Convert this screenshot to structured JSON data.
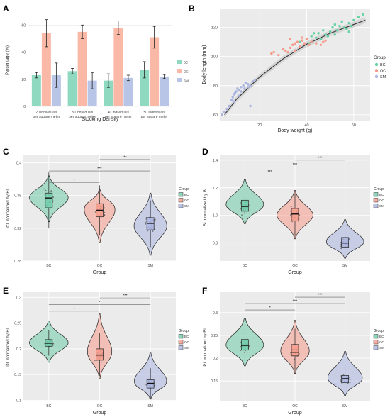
{
  "panels": {
    "A": {
      "letter": "A"
    },
    "B": {
      "letter": "B"
    },
    "C": {
      "letter": "C"
    },
    "D": {
      "letter": "D"
    },
    "E": {
      "letter": "E"
    },
    "F": {
      "letter": "F"
    }
  },
  "chart_data": [
    {
      "id": "A",
      "type": "bar",
      "title": "",
      "xlabel": "Stocking Density",
      "ylabel": "Percentage (%)",
      "ylim": [
        0,
        68
      ],
      "yticks": [
        0,
        20,
        40,
        60
      ],
      "grid": true,
      "legend_position": "right",
      "categories": [
        "20 individuals\nper square meter",
        "30 individuals\nper square meter",
        "40 individuals\nper square meter",
        "50 individuals\nper square meter"
      ],
      "series": [
        {
          "name": "BC",
          "color": "#8fd9c0",
          "values": [
            23,
            26,
            19,
            27
          ],
          "errors": [
            2,
            2,
            5,
            6
          ]
        },
        {
          "name": "OC",
          "color": "#f9b9a6",
          "values": [
            54,
            55,
            58,
            51
          ],
          "errors": [
            10,
            5,
            5,
            8
          ]
        },
        {
          "name": "SM",
          "color": "#b9c5e6",
          "values": [
            23,
            19,
            21,
            22
          ],
          "errors": [
            9,
            6,
            2,
            1.5
          ]
        }
      ]
    },
    {
      "id": "B",
      "type": "scatter",
      "title": "",
      "xlabel": "Body weight (g)",
      "ylabel": "Body length (mm)",
      "xlim": [
        3,
        67
      ],
      "ylim": [
        56,
        133
      ],
      "xticks": [
        20,
        40,
        60
      ],
      "yticks": [
        60,
        80,
        100,
        120
      ],
      "grid": true,
      "legend_title": "Group",
      "legend_position": "right",
      "fit_curve": {
        "x": [
          5,
          10,
          20,
          30,
          40,
          50,
          60,
          65
        ],
        "y": [
          60,
          70.5,
          86,
          98.5,
          108.5,
          116,
          122,
          125
        ]
      },
      "series": [
        {
          "name": "BC",
          "color": "#66d2a4",
          "points": [
            [
              37,
              110
            ],
            [
              40,
              112
            ],
            [
              42,
              114
            ],
            [
              44,
              113
            ],
            [
              45,
              116
            ],
            [
              46,
              112
            ],
            [
              47,
              118
            ],
            [
              48,
              115
            ],
            [
              50,
              117
            ],
            [
              51,
              120
            ],
            [
              52,
              122
            ],
            [
              53,
              118
            ],
            [
              54,
              121
            ],
            [
              55,
              124
            ],
            [
              56,
              120
            ],
            [
              57,
              119
            ],
            [
              58,
              123
            ],
            [
              59,
              121
            ],
            [
              60,
              125
            ],
            [
              62,
              127
            ],
            [
              64,
              129
            ],
            [
              58,
              117
            ],
            [
              52,
              115
            ],
            [
              49,
              114
            ],
            [
              43,
              116
            ],
            [
              41,
              109
            ]
          ]
        },
        {
          "name": "OC",
          "color": "#f59a8a",
          "points": [
            [
              25,
              102
            ],
            [
              28,
              101
            ],
            [
              31,
              104
            ],
            [
              32,
              103
            ],
            [
              33,
              106
            ],
            [
              34,
              108
            ],
            [
              35,
              109
            ],
            [
              36,
              110
            ],
            [
              37,
              107
            ],
            [
              38,
              111
            ],
            [
              39,
              109
            ],
            [
              40,
              112
            ],
            [
              41,
              108
            ],
            [
              42,
              110
            ],
            [
              44,
              109
            ],
            [
              46,
              108
            ],
            [
              47,
              110
            ],
            [
              48,
              111
            ],
            [
              35,
              104
            ],
            [
              30,
              105
            ],
            [
              33,
              112
            ],
            [
              38,
              113
            ],
            [
              26,
              103
            ]
          ]
        },
        {
          "name": "SM",
          "color": "#a9b4e0",
          "points": [
            [
              4,
              60
            ],
            [
              5,
              62
            ],
            [
              6,
              64
            ],
            [
              7,
              66
            ],
            [
              8,
              70
            ],
            [
              8.5,
              72
            ],
            [
              9,
              74
            ],
            [
              9.5,
              75
            ],
            [
              10,
              76
            ],
            [
              10.5,
              78
            ],
            [
              11,
              77
            ],
            [
              12,
              79
            ],
            [
              13,
              80
            ],
            [
              13.5,
              78
            ],
            [
              14,
              82
            ],
            [
              15,
              81
            ],
            [
              16,
              80
            ],
            [
              17,
              83
            ],
            [
              18,
              84
            ],
            [
              11,
              73
            ],
            [
              12,
              76
            ],
            [
              15,
              79
            ],
            [
              16,
              66
            ],
            [
              9,
              69
            ]
          ]
        }
      ]
    },
    {
      "id": "C",
      "type": "violin",
      "xlabel": "Group",
      "ylabel": "CL  normalized by BL",
      "ylim": [
        0.28,
        0.41
      ],
      "yticks": [
        0.28,
        0.32,
        0.36,
        0.4
      ],
      "legend_title": "Group",
      "legend_position": "right",
      "groups": [
        {
          "name": "BC",
          "color": "#6dcca8",
          "min": 0.328,
          "q1": 0.345,
          "median": 0.357,
          "q3": 0.363,
          "max": 0.384,
          "mode": 0.358,
          "width": 0.85
        },
        {
          "name": "OC",
          "color": "#f59a8a",
          "min": 0.303,
          "q1": 0.334,
          "median": 0.342,
          "q3": 0.35,
          "max": 0.367,
          "mode": 0.347,
          "width": 0.72
        },
        {
          "name": "SM",
          "color": "#a9b4e0",
          "min": 0.287,
          "q1": 0.318,
          "median": 0.326,
          "q3": 0.333,
          "max": 0.363,
          "mode": 0.322,
          "width": 0.72
        }
      ],
      "significance": [
        {
          "from": "BC",
          "to": "OC",
          "label": "*",
          "y": 0.376
        },
        {
          "from": "BC",
          "to": "SM",
          "label": "***",
          "y": 0.39
        },
        {
          "from": "OC",
          "to": "SM",
          "label": "**",
          "y": 0.404
        }
      ]
    },
    {
      "id": "D",
      "type": "violin",
      "xlabel": "Group",
      "ylabel": "LSL  normalized by BL",
      "ylim": [
        0.67,
        1.44
      ],
      "yticks": [
        0.8,
        1.0,
        1.2,
        1.4
      ],
      "legend_title": "Group",
      "legend_position": "right",
      "groups": [
        {
          "name": "BC",
          "color": "#6dcca8",
          "min": 0.94,
          "q1": 1.03,
          "median": 1.065,
          "q3": 1.11,
          "max": 1.26,
          "mode": 1.07,
          "width": 0.85
        },
        {
          "name": "OC",
          "color": "#f59a8a",
          "min": 0.83,
          "q1": 0.96,
          "median": 1.01,
          "q3": 1.05,
          "max": 1.18,
          "mode": 1.0,
          "width": 0.8
        },
        {
          "name": "SM",
          "color": "#a9b4e0",
          "min": 0.69,
          "q1": 0.77,
          "median": 0.8,
          "q3": 0.84,
          "max": 0.97,
          "mode": 0.8,
          "width": 0.85
        }
      ],
      "significance": [
        {
          "from": "BC",
          "to": "OC",
          "label": "***",
          "y": 1.3
        },
        {
          "from": "BC",
          "to": "SM",
          "label": "***",
          "y": 1.35
        },
        {
          "from": "OC",
          "to": "SM",
          "label": "***",
          "y": 1.4
        }
      ]
    },
    {
      "id": "E",
      "type": "violin",
      "xlabel": "Group",
      "ylabel": "DL normalized by BL",
      "ylim": [
        0.098,
        0.31
      ],
      "yticks": [
        0.1,
        0.15,
        0.2,
        0.25,
        0.3
      ],
      "legend_title": "Group",
      "legend_position": "right",
      "groups": [
        {
          "name": "BC",
          "color": "#6dcca8",
          "min": 0.174,
          "q1": 0.205,
          "median": 0.211,
          "q3": 0.218,
          "max": 0.254,
          "mode": 0.211,
          "width": 0.85
        },
        {
          "name": "OC",
          "color": "#f59a8a",
          "min": 0.142,
          "q1": 0.178,
          "median": 0.188,
          "q3": 0.2,
          "max": 0.268,
          "mode": 0.19,
          "width": 0.55
        },
        {
          "name": "SM",
          "color": "#a9b4e0",
          "min": 0.103,
          "q1": 0.124,
          "median": 0.133,
          "q3": 0.14,
          "max": 0.192,
          "mode": 0.132,
          "width": 0.75
        }
      ],
      "significance": [
        {
          "from": "BC",
          "to": "OC",
          "label": "*",
          "y": 0.273
        },
        {
          "from": "BC",
          "to": "SM",
          "label": "*",
          "y": 0.286
        },
        {
          "from": "OC",
          "to": "SM",
          "label": "***",
          "y": 0.299
        }
      ]
    },
    {
      "id": "F",
      "type": "violin",
      "xlabel": "Group",
      "ylabel": "PL normalized by BL",
      "ylim": [
        0.105,
        0.345
      ],
      "yticks": [
        0.15,
        0.2,
        0.25,
        0.3
      ],
      "legend_title": "Group",
      "legend_position": "right",
      "groups": [
        {
          "name": "BC",
          "color": "#6dcca8",
          "min": 0.183,
          "q1": 0.218,
          "median": 0.228,
          "q3": 0.241,
          "max": 0.288,
          "mode": 0.226,
          "width": 0.85
        },
        {
          "name": "OC",
          "color": "#f59a8a",
          "min": 0.166,
          "q1": 0.205,
          "median": 0.213,
          "q3": 0.23,
          "max": 0.283,
          "mode": 0.212,
          "width": 0.65
        },
        {
          "name": "SM",
          "color": "#a9b4e0",
          "min": 0.118,
          "q1": 0.146,
          "median": 0.155,
          "q3": 0.162,
          "max": 0.215,
          "mode": 0.152,
          "width": 0.8
        }
      ],
      "significance": [
        {
          "from": "BC",
          "to": "OC",
          "label": "*",
          "y": 0.306
        },
        {
          "from": "BC",
          "to": "SM",
          "label": "***",
          "y": 0.32
        },
        {
          "from": "OC",
          "to": "SM",
          "label": "***",
          "y": 0.334
        }
      ]
    }
  ]
}
